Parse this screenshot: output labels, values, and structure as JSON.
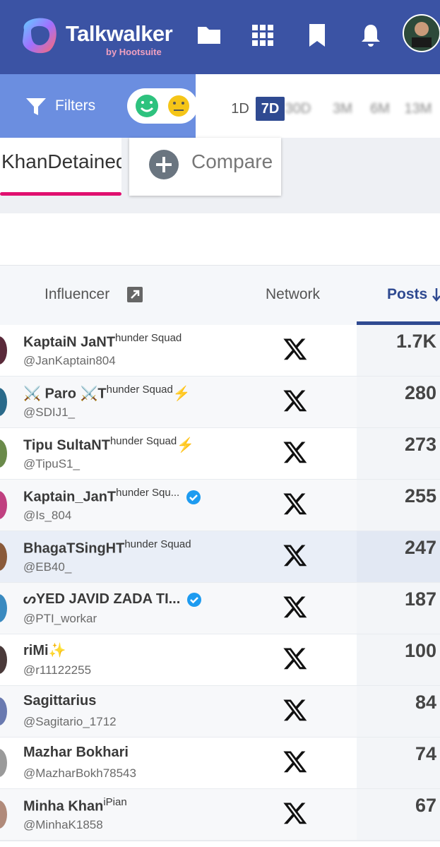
{
  "header": {
    "brand": "Talkwalker",
    "sub": "by Hootsuite"
  },
  "toolbar": {
    "filters": "Filters",
    "periods": [
      "1D",
      "7D",
      "30D",
      "3M",
      "6M",
      "13M"
    ],
    "active_period": 1
  },
  "tabs": {
    "active": "KhanDetained",
    "compare": "Compare"
  },
  "table": {
    "columns": [
      "Influencer",
      "Network",
      "Posts"
    ],
    "rows": [
      {
        "name": "KaptaiN JaNT",
        "sup": "hunder Squad",
        "handle": "@JanKaptain804",
        "posts": "1.7K"
      },
      {
        "name": "⚔️ Paro ⚔️T",
        "sup": "hunder Squad",
        "tail": "⚡",
        "handle": "@SDIJ1_",
        "posts": "280"
      },
      {
        "name": "Tipu SultaNT",
        "sup": "hunder Squad",
        "tail": "⚡",
        "handle": "@TipuS1_",
        "posts": "273"
      },
      {
        "name": "Kaptain_JanT",
        "sup": "hunder Squ...",
        "verified": true,
        "handle": "@Is_804",
        "posts": "255"
      },
      {
        "name": "BhagaTSingHT",
        "sup": "hunder Squad",
        "handle": "@EB40_",
        "posts": "247",
        "highlight": true
      },
      {
        "name": "ᔕYED JAVID ZADA TI...",
        "verified": true,
        "handle": "@PTI_workar",
        "posts": "187"
      },
      {
        "name": "riMi✨",
        "handle": "@r11122255",
        "posts": "100"
      },
      {
        "name": "Sagittarius",
        "handle": "@Sagitario_1712",
        "posts": "84"
      },
      {
        "name": "Mazhar Bokhari",
        "handle": "@MazharBokh78543",
        "posts": "74"
      },
      {
        "name": "Minha Khan",
        "sup": "iPian",
        "handle": "@MinhaK1858",
        "posts": "67"
      }
    ]
  }
}
